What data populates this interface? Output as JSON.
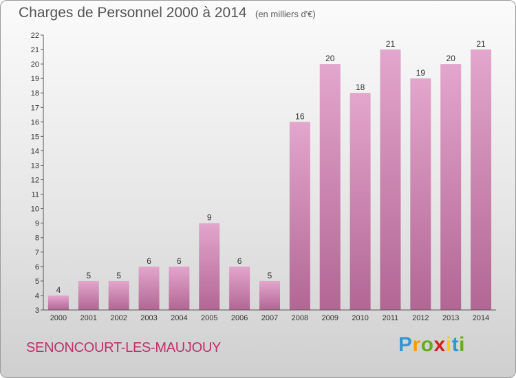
{
  "header": {
    "title": "Charges de Personnel 2000 à 2014",
    "subtitle": "(en milliers d'€)"
  },
  "footer": {
    "commune": "SENONCOURT-LES-MAUJOUY",
    "logo_letters": [
      "P",
      "r",
      "o",
      "x",
      "i",
      "t",
      "i"
    ],
    "logo_colors": [
      "#3399cc",
      "#ff9900",
      "#66aa22",
      "#cc2222",
      "#ffcc00",
      "#3399cc",
      "#66aa22"
    ]
  },
  "chart_data": {
    "type": "bar",
    "title": "Charges de Personnel 2000 à 2014",
    "subtitle": "(en milliers d'€)",
    "categories": [
      "2000",
      "2001",
      "2002",
      "2003",
      "2004",
      "2005",
      "2006",
      "2007",
      "2008",
      "2009",
      "2010",
      "2011",
      "2012",
      "2013",
      "2014"
    ],
    "values": [
      4,
      5,
      5,
      6,
      6,
      9,
      6,
      5,
      16,
      20,
      18,
      21,
      19,
      20,
      21
    ],
    "ylim": [
      3,
      22
    ],
    "yticks": [
      3,
      4,
      5,
      6,
      7,
      8,
      9,
      10,
      11,
      12,
      13,
      14,
      15,
      16,
      17,
      18,
      19,
      20,
      21,
      22
    ],
    "grid": false,
    "legend": "none",
    "bar_color": "#d890b8"
  }
}
